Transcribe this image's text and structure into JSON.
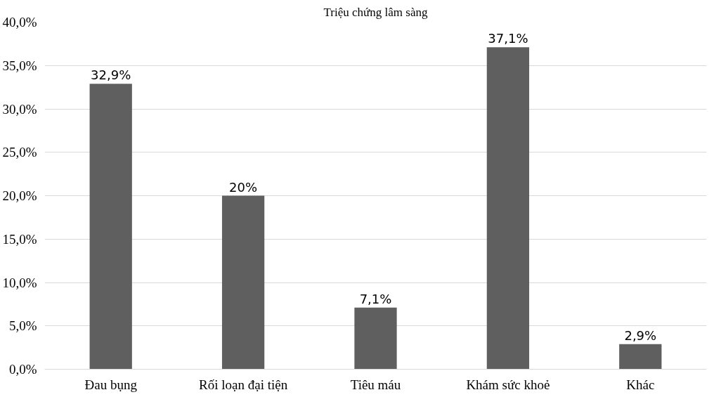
{
  "chart_data": {
    "type": "bar",
    "title": "Triệu chứng lâm sàng",
    "categories": [
      "Đau bụng",
      "Rối loạn đại tiện",
      "Tiêu máu",
      "Khám sức khoẻ",
      "Khác"
    ],
    "values": [
      32.9,
      20,
      7.1,
      37.1,
      2.9
    ],
    "value_labels": [
      "32,9%",
      "20%",
      "7,1%",
      "37,1%",
      "2,9%"
    ],
    "color": "#5f5f5f",
    "ylim": [
      0,
      40
    ],
    "yticks": [
      {
        "value": 0,
        "label": "0,0%"
      },
      {
        "value": 5,
        "label": "5,0%"
      },
      {
        "value": 10,
        "label": "10,0%"
      },
      {
        "value": 15,
        "label": "15,0%"
      },
      {
        "value": 20,
        "label": "20,0%"
      },
      {
        "value": 25,
        "label": "25,0%"
      },
      {
        "value": 30,
        "label": "30,0%"
      },
      {
        "value": 35,
        "label": "35,0%"
      },
      {
        "value": 40,
        "label": "40,0%"
      }
    ],
    "grid": "y"
  }
}
